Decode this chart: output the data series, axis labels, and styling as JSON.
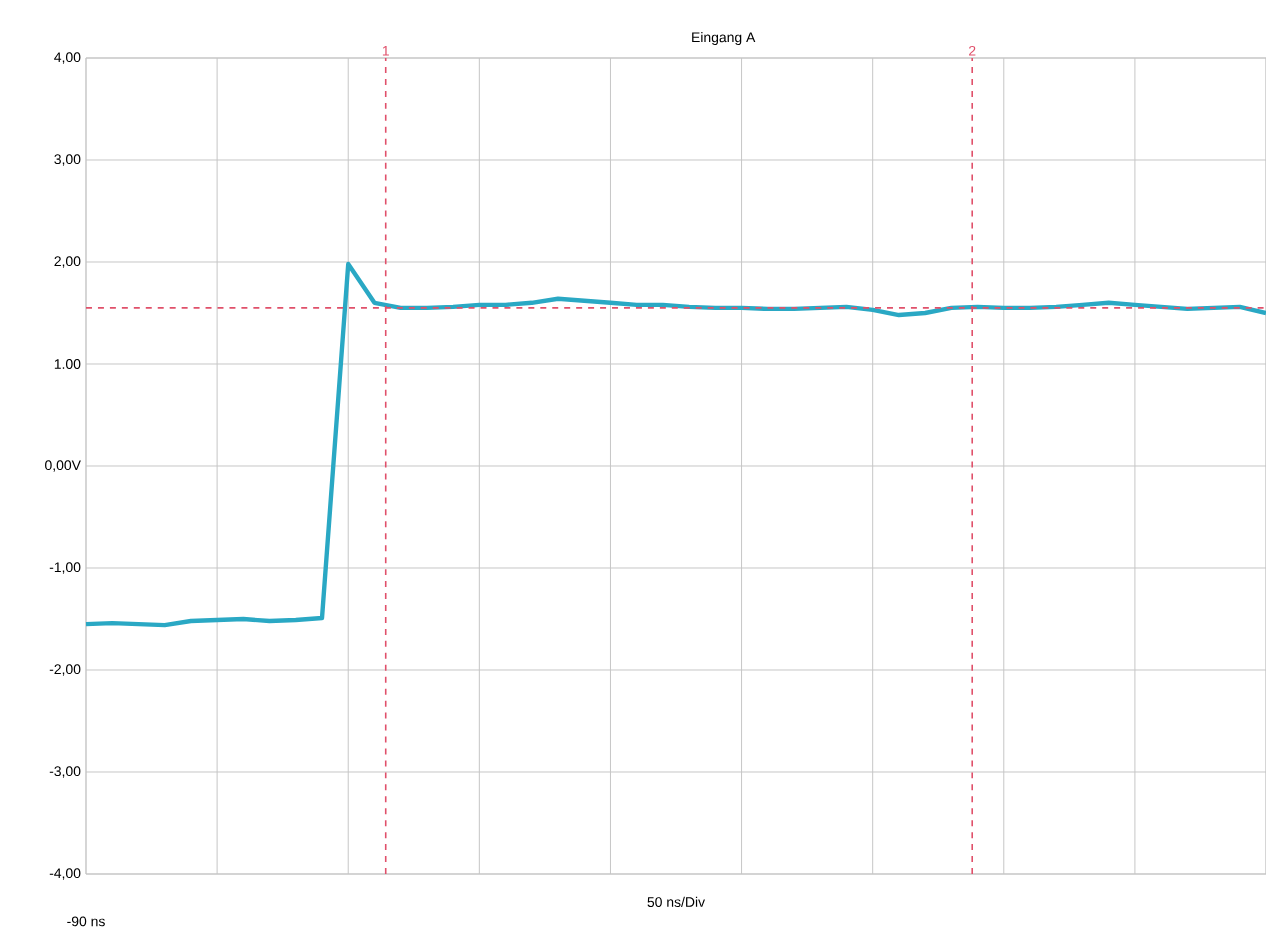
{
  "chart_data": {
    "type": "line",
    "title": "Eingang A",
    "xlabel": "50 ns/Div",
    "annotations": [
      "-90 ns",
      "1",
      "2"
    ],
    "ylim": [
      -4,
      4
    ],
    "yticks": [
      {
        "value": -4,
        "label": "-4,00"
      },
      {
        "value": -3,
        "label": "-3,00"
      },
      {
        "value": -2,
        "label": "-2,00"
      },
      {
        "value": -1,
        "label": "-1,00"
      },
      {
        "value": 0,
        "label": "0,00V"
      },
      {
        "value": 1,
        "label": "1.00"
      },
      {
        "value": 2,
        "label": "2,00"
      },
      {
        "value": 3,
        "label": "3,00"
      },
      {
        "value": 4,
        "label": "4,00"
      }
    ],
    "grid": true,
    "categories": [
      null,
      null,
      null,
      null,
      null,
      null,
      null,
      null,
      null,
      null,
      null,
      null,
      null,
      null,
      null,
      null,
      null,
      null,
      null,
      null,
      null,
      null,
      null,
      null,
      null,
      null,
      null,
      null,
      null,
      null,
      null,
      null,
      null,
      null,
      null,
      null,
      null,
      null,
      null,
      null,
      null,
      null,
      null,
      null,
      null,
      null
    ],
    "series": [
      {
        "color": "#2aa8c4",
        "values": [
          -1.55,
          -1.54,
          -1.55,
          -1.56,
          -1.52,
          -1.51,
          -1.5,
          -1.52,
          -1.51,
          -1.49,
          1.98,
          1.6,
          1.55,
          1.55,
          1.56,
          1.58,
          1.58,
          1.6,
          1.64,
          1.62,
          1.6,
          1.58,
          1.58,
          1.56,
          1.55,
          1.55,
          1.54,
          1.54,
          1.55,
          1.56,
          1.53,
          1.48,
          1.5,
          1.55,
          1.56,
          1.55,
          1.55,
          1.56,
          1.58,
          1.6,
          1.58,
          1.56,
          1.54,
          1.55,
          1.56,
          1.5
        ]
      }
    ],
    "ref_lines": [
      {
        "axis": "y",
        "value": 1.55,
        "color": "#e0506a",
        "line_style": "dashed"
      }
    ]
  }
}
